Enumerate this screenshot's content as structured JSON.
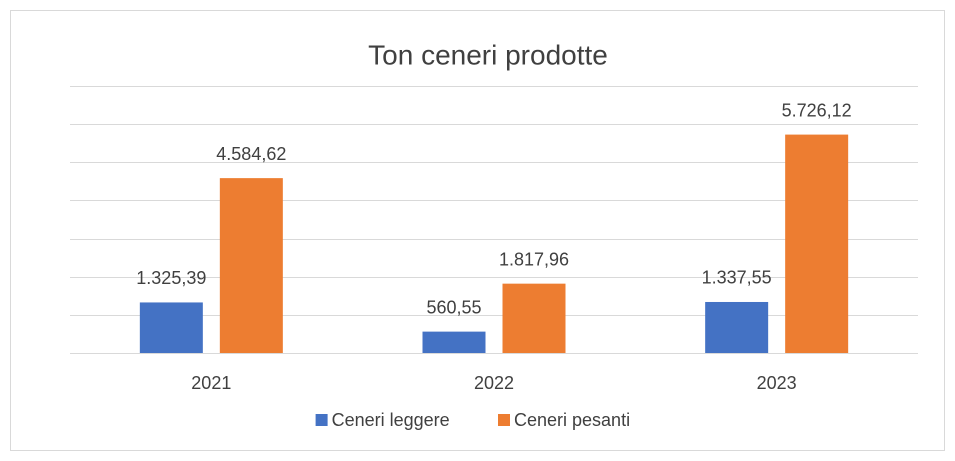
{
  "chart_data": {
    "type": "bar",
    "title": "Ton ceneri prodotte",
    "categories": [
      "2021",
      "2022",
      "2023"
    ],
    "series": [
      {
        "name": "Ceneri leggere",
        "color": "#4472c4",
        "values": [
          1325.39,
          560.55,
          1337.55
        ],
        "value_labels": [
          "1.325,39",
          "560,55",
          "1.337,55"
        ]
      },
      {
        "name": "Ceneri pesanti",
        "color": "#ed7d31",
        "values": [
          4584.62,
          1817.96,
          5726.12
        ],
        "value_labels": [
          "4.584,62",
          "1.817,96",
          "5.726,12"
        ]
      }
    ],
    "ylim": [
      0,
      7000
    ],
    "yticks": [
      0,
      1000,
      2000,
      3000,
      4000,
      5000,
      6000,
      7000
    ],
    "grid": true,
    "legend": "bottom"
  }
}
